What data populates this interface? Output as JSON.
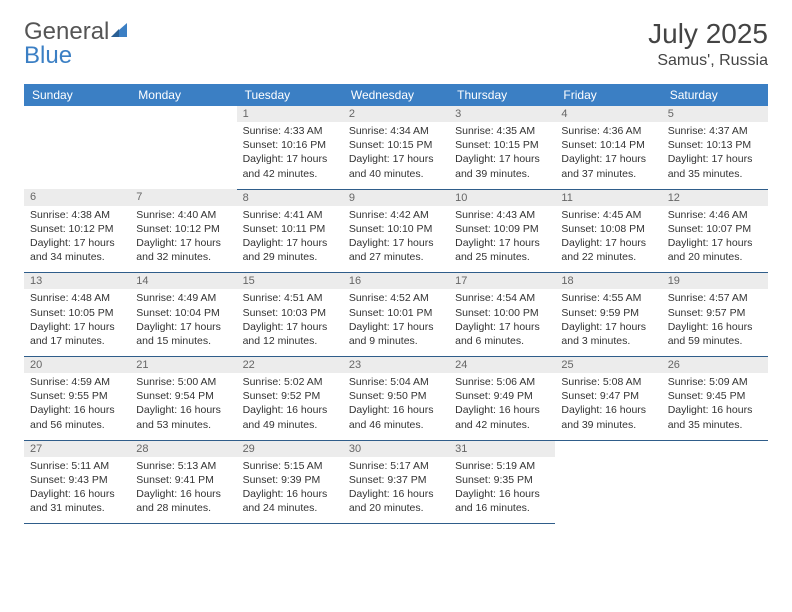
{
  "brand": {
    "word1": "General",
    "word2": "Blue",
    "text_color": "#555555",
    "accent_color": "#3b7fc4"
  },
  "title": {
    "month_year": "July 2025",
    "location": "Samus', Russia"
  },
  "colors": {
    "header_bg": "#3b7fc4",
    "header_text": "#ffffff",
    "daynum_bg": "#ececec",
    "daynum_text": "#666666",
    "cell_border": "#2f5d8a",
    "body_text": "#333333",
    "page_bg": "#ffffff"
  },
  "weekdays": [
    "Sunday",
    "Monday",
    "Tuesday",
    "Wednesday",
    "Thursday",
    "Friday",
    "Saturday"
  ],
  "weeks": [
    [
      null,
      null,
      {
        "n": "1",
        "sunrise": "Sunrise: 4:33 AM",
        "sunset": "Sunset: 10:16 PM",
        "daylight": "Daylight: 17 hours and 42 minutes."
      },
      {
        "n": "2",
        "sunrise": "Sunrise: 4:34 AM",
        "sunset": "Sunset: 10:15 PM",
        "daylight": "Daylight: 17 hours and 40 minutes."
      },
      {
        "n": "3",
        "sunrise": "Sunrise: 4:35 AM",
        "sunset": "Sunset: 10:15 PM",
        "daylight": "Daylight: 17 hours and 39 minutes."
      },
      {
        "n": "4",
        "sunrise": "Sunrise: 4:36 AM",
        "sunset": "Sunset: 10:14 PM",
        "daylight": "Daylight: 17 hours and 37 minutes."
      },
      {
        "n": "5",
        "sunrise": "Sunrise: 4:37 AM",
        "sunset": "Sunset: 10:13 PM",
        "daylight": "Daylight: 17 hours and 35 minutes."
      }
    ],
    [
      {
        "n": "6",
        "sunrise": "Sunrise: 4:38 AM",
        "sunset": "Sunset: 10:12 PM",
        "daylight": "Daylight: 17 hours and 34 minutes."
      },
      {
        "n": "7",
        "sunrise": "Sunrise: 4:40 AM",
        "sunset": "Sunset: 10:12 PM",
        "daylight": "Daylight: 17 hours and 32 minutes."
      },
      {
        "n": "8",
        "sunrise": "Sunrise: 4:41 AM",
        "sunset": "Sunset: 10:11 PM",
        "daylight": "Daylight: 17 hours and 29 minutes."
      },
      {
        "n": "9",
        "sunrise": "Sunrise: 4:42 AM",
        "sunset": "Sunset: 10:10 PM",
        "daylight": "Daylight: 17 hours and 27 minutes."
      },
      {
        "n": "10",
        "sunrise": "Sunrise: 4:43 AM",
        "sunset": "Sunset: 10:09 PM",
        "daylight": "Daylight: 17 hours and 25 minutes."
      },
      {
        "n": "11",
        "sunrise": "Sunrise: 4:45 AM",
        "sunset": "Sunset: 10:08 PM",
        "daylight": "Daylight: 17 hours and 22 minutes."
      },
      {
        "n": "12",
        "sunrise": "Sunrise: 4:46 AM",
        "sunset": "Sunset: 10:07 PM",
        "daylight": "Daylight: 17 hours and 20 minutes."
      }
    ],
    [
      {
        "n": "13",
        "sunrise": "Sunrise: 4:48 AM",
        "sunset": "Sunset: 10:05 PM",
        "daylight": "Daylight: 17 hours and 17 minutes."
      },
      {
        "n": "14",
        "sunrise": "Sunrise: 4:49 AM",
        "sunset": "Sunset: 10:04 PM",
        "daylight": "Daylight: 17 hours and 15 minutes."
      },
      {
        "n": "15",
        "sunrise": "Sunrise: 4:51 AM",
        "sunset": "Sunset: 10:03 PM",
        "daylight": "Daylight: 17 hours and 12 minutes."
      },
      {
        "n": "16",
        "sunrise": "Sunrise: 4:52 AM",
        "sunset": "Sunset: 10:01 PM",
        "daylight": "Daylight: 17 hours and 9 minutes."
      },
      {
        "n": "17",
        "sunrise": "Sunrise: 4:54 AM",
        "sunset": "Sunset: 10:00 PM",
        "daylight": "Daylight: 17 hours and 6 minutes."
      },
      {
        "n": "18",
        "sunrise": "Sunrise: 4:55 AM",
        "sunset": "Sunset: 9:59 PM",
        "daylight": "Daylight: 17 hours and 3 minutes."
      },
      {
        "n": "19",
        "sunrise": "Sunrise: 4:57 AM",
        "sunset": "Sunset: 9:57 PM",
        "daylight": "Daylight: 16 hours and 59 minutes."
      }
    ],
    [
      {
        "n": "20",
        "sunrise": "Sunrise: 4:59 AM",
        "sunset": "Sunset: 9:55 PM",
        "daylight": "Daylight: 16 hours and 56 minutes."
      },
      {
        "n": "21",
        "sunrise": "Sunrise: 5:00 AM",
        "sunset": "Sunset: 9:54 PM",
        "daylight": "Daylight: 16 hours and 53 minutes."
      },
      {
        "n": "22",
        "sunrise": "Sunrise: 5:02 AM",
        "sunset": "Sunset: 9:52 PM",
        "daylight": "Daylight: 16 hours and 49 minutes."
      },
      {
        "n": "23",
        "sunrise": "Sunrise: 5:04 AM",
        "sunset": "Sunset: 9:50 PM",
        "daylight": "Daylight: 16 hours and 46 minutes."
      },
      {
        "n": "24",
        "sunrise": "Sunrise: 5:06 AM",
        "sunset": "Sunset: 9:49 PM",
        "daylight": "Daylight: 16 hours and 42 minutes."
      },
      {
        "n": "25",
        "sunrise": "Sunrise: 5:08 AM",
        "sunset": "Sunset: 9:47 PM",
        "daylight": "Daylight: 16 hours and 39 minutes."
      },
      {
        "n": "26",
        "sunrise": "Sunrise: 5:09 AM",
        "sunset": "Sunset: 9:45 PM",
        "daylight": "Daylight: 16 hours and 35 minutes."
      }
    ],
    [
      {
        "n": "27",
        "sunrise": "Sunrise: 5:11 AM",
        "sunset": "Sunset: 9:43 PM",
        "daylight": "Daylight: 16 hours and 31 minutes."
      },
      {
        "n": "28",
        "sunrise": "Sunrise: 5:13 AM",
        "sunset": "Sunset: 9:41 PM",
        "daylight": "Daylight: 16 hours and 28 minutes."
      },
      {
        "n": "29",
        "sunrise": "Sunrise: 5:15 AM",
        "sunset": "Sunset: 9:39 PM",
        "daylight": "Daylight: 16 hours and 24 minutes."
      },
      {
        "n": "30",
        "sunrise": "Sunrise: 5:17 AM",
        "sunset": "Sunset: 9:37 PM",
        "daylight": "Daylight: 16 hours and 20 minutes."
      },
      {
        "n": "31",
        "sunrise": "Sunrise: 5:19 AM",
        "sunset": "Sunset: 9:35 PM",
        "daylight": "Daylight: 16 hours and 16 minutes."
      },
      null,
      null
    ]
  ]
}
